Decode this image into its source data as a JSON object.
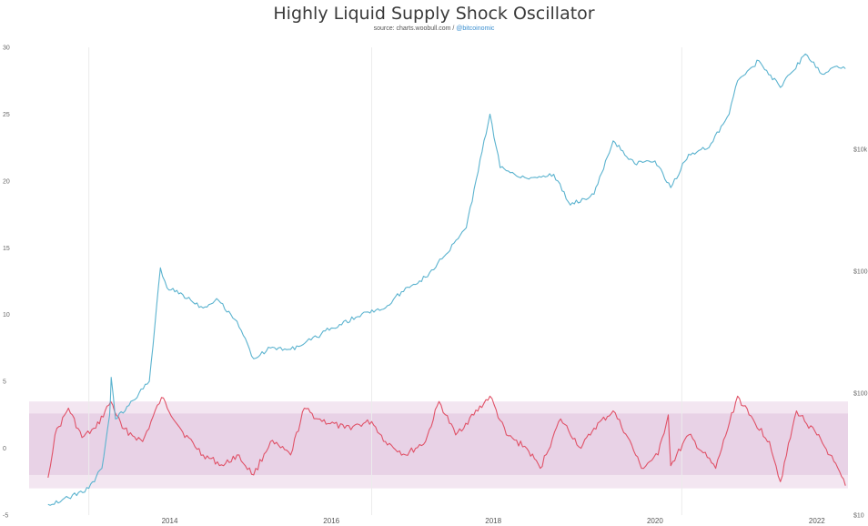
{
  "title": "Highly Liquid Supply Shock Oscillator",
  "subtitle": {
    "source": "source: charts.woobull.com /",
    "handle": "@bitcoinomic"
  },
  "colors": {
    "ratio_line": "#5bb3cf",
    "oscillator_line": "#e05268",
    "band_outer": "#f3e6f1",
    "band_inner": "#e8d2e6",
    "vgrid": "#ececec"
  },
  "chart_data": {
    "type": "line",
    "title": "Highly Liquid Supply Shock Oscillator",
    "xlabel": "",
    "ylabel": "",
    "xlim": [
      "2012-05-01",
      "2022-06-15"
    ],
    "x_ticks": [
      "2014",
      "2016",
      "2018",
      "2020",
      "2022"
    ],
    "left_axis": {
      "ticks": [
        "30",
        "25",
        "20",
        "15",
        "10",
        "5",
        "0",
        "-5"
      ],
      "ylim": [
        -5,
        30
      ]
    },
    "right_axis": {
      "ticks": [
        "$10k",
        "$1000",
        "$100",
        "$10"
      ],
      "scale": "log",
      "ylim": [
        10,
        100000
      ]
    },
    "grid": {
      "x": true,
      "y": false
    },
    "bands": [
      {
        "name": "outer",
        "range": [
          -3,
          3.5
        ]
      },
      {
        "name": "inner",
        "range": [
          -2,
          2.6
        ]
      }
    ],
    "series": [
      {
        "axis": "left",
        "points": [
          [
            "2012-07-01",
            -4.2
          ],
          [
            "2012-10-01",
            -3.7
          ],
          [
            "2013-01-01",
            -3.0
          ],
          [
            "2013-03-01",
            -1.5
          ],
          [
            "2013-04-05",
            2.5
          ],
          [
            "2013-04-12",
            5.3
          ],
          [
            "2013-05-01",
            2.2
          ],
          [
            "2013-07-01",
            3.2
          ],
          [
            "2013-10-01",
            5.0
          ],
          [
            "2013-11-20",
            13.5
          ],
          [
            "2013-12-20",
            12.0
          ],
          [
            "2014-03-01",
            11.5
          ],
          [
            "2014-06-01",
            10.5
          ],
          [
            "2014-08-01",
            11.2
          ],
          [
            "2014-11-01",
            9.5
          ],
          [
            "2015-01-15",
            6.7
          ],
          [
            "2015-04-01",
            7.5
          ],
          [
            "2015-07-01",
            7.4
          ],
          [
            "2015-10-01",
            8.1
          ],
          [
            "2016-01-01",
            9.0
          ],
          [
            "2016-06-15",
            10.2
          ],
          [
            "2016-09-01",
            10.5
          ],
          [
            "2016-12-01",
            12.0
          ],
          [
            "2017-03-01",
            12.8
          ],
          [
            "2017-06-01",
            14.5
          ],
          [
            "2017-09-01",
            16.5
          ],
          [
            "2017-12-17",
            25.0
          ],
          [
            "2018-02-01",
            21.0
          ],
          [
            "2018-06-01",
            20.2
          ],
          [
            "2018-10-01",
            20.5
          ],
          [
            "2018-12-15",
            18.2
          ],
          [
            "2019-04-01",
            19.0
          ],
          [
            "2019-06-26",
            23.0
          ],
          [
            "2019-10-01",
            21.3
          ],
          [
            "2020-01-01",
            21.5
          ],
          [
            "2020-03-12",
            19.5
          ],
          [
            "2020-06-01",
            22.0
          ],
          [
            "2020-09-01",
            22.5
          ],
          [
            "2020-12-01",
            25.0
          ],
          [
            "2021-01-08",
            27.5
          ],
          [
            "2021-04-14",
            29.0
          ],
          [
            "2021-07-20",
            27.0
          ],
          [
            "2021-11-10",
            29.5
          ],
          [
            "2022-01-24",
            28.0
          ],
          [
            "2022-04-01",
            28.6
          ],
          [
            "2022-05-10",
            28.4
          ]
        ]
      },
      {
        "axis": "left",
        "points": [
          [
            "2012-07-01",
            -2.2
          ],
          [
            "2012-08-01",
            1.0
          ],
          [
            "2012-10-01",
            3.0
          ],
          [
            "2012-12-01",
            0.8
          ],
          [
            "2013-02-01",
            1.5
          ],
          [
            "2013-04-10",
            3.5
          ],
          [
            "2013-06-01",
            1.5
          ],
          [
            "2013-09-01",
            0.5
          ],
          [
            "2013-11-25",
            3.8
          ],
          [
            "2014-03-01",
            1.2
          ],
          [
            "2014-06-01",
            -0.5
          ],
          [
            "2014-09-01",
            -1.3
          ],
          [
            "2014-11-01",
            -0.5
          ],
          [
            "2015-01-15",
            -2.0
          ],
          [
            "2015-04-01",
            0.5
          ],
          [
            "2015-07-01",
            -0.5
          ],
          [
            "2015-09-01",
            3.0
          ],
          [
            "2015-11-01",
            2.2
          ],
          [
            "2016-03-01",
            1.5
          ],
          [
            "2016-07-01",
            2.0
          ],
          [
            "2016-09-01",
            0.5
          ],
          [
            "2016-12-01",
            -0.5
          ],
          [
            "2017-03-01",
            0.5
          ],
          [
            "2017-05-01",
            3.5
          ],
          [
            "2017-07-15",
            1.0
          ],
          [
            "2017-12-17",
            3.9
          ],
          [
            "2018-03-01",
            1.0
          ],
          [
            "2018-06-01",
            0.0
          ],
          [
            "2018-08-01",
            -1.5
          ],
          [
            "2018-11-01",
            2.2
          ],
          [
            "2019-02-01",
            0.0
          ],
          [
            "2019-04-01",
            1.5
          ],
          [
            "2019-06-26",
            2.8
          ],
          [
            "2019-09-01",
            0.8
          ],
          [
            "2019-11-01",
            -1.5
          ],
          [
            "2020-01-15",
            -0.5
          ],
          [
            "2020-03-01",
            2.5
          ],
          [
            "2020-03-12",
            -1.3
          ],
          [
            "2020-06-01",
            1.0
          ],
          [
            "2020-10-01",
            -1.5
          ],
          [
            "2021-01-08",
            3.9
          ],
          [
            "2021-03-01",
            2.5
          ],
          [
            "2021-06-01",
            0.5
          ],
          [
            "2021-07-20",
            -2.5
          ],
          [
            "2021-10-01",
            2.8
          ],
          [
            "2022-01-01",
            1.0
          ],
          [
            "2022-03-01",
            -0.5
          ],
          [
            "2022-05-10",
            -2.8
          ]
        ]
      }
    ]
  }
}
